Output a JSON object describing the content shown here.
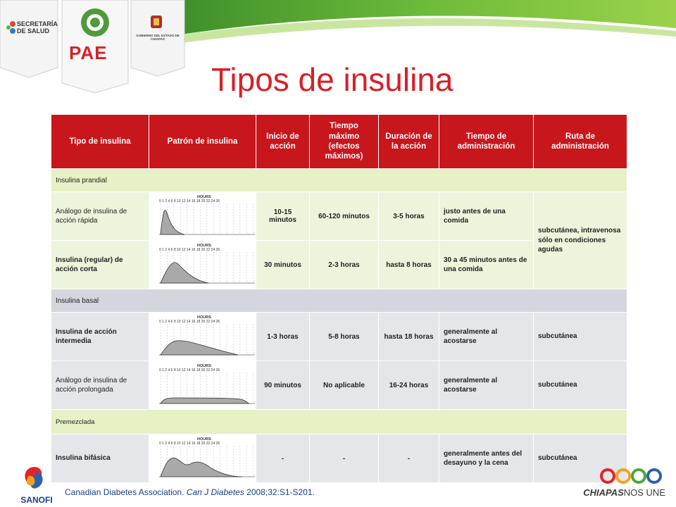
{
  "header": {
    "logo_secretaria_line1": "SECRETARÍA",
    "logo_secretaria_line2": "DE SALUD",
    "logo_pae": "PAE",
    "logo_gobierno": "GOBIERNO DEL ESTADO DE CHIAPAS"
  },
  "title": "Tipos de insulina",
  "table": {
    "headers": [
      "Tipo de insulina",
      "Patrón de insulina",
      "Inicio de acción",
      "Tiempo máximo (efectos máximos)",
      "Duración de la acción",
      "Tiempo de administración",
      "Ruta de administración"
    ],
    "graph_label": "HOURS",
    "graph_ticks": "0 1 2 4 6 8 10 12 14 16 18 20 22 24 26",
    "sections": [
      {
        "label": "Insulina prandial"
      },
      {
        "label": "Insulina basal"
      },
      {
        "label": "Premezclada"
      }
    ],
    "rows": [
      {
        "name": "Análogo de insulina de acción rápida",
        "inicio": "10-15 minutos",
        "maximo": "60-120 minutos",
        "duracion": "3-5 horas",
        "administracion": "justo antes de una comida",
        "ruta": "subcutánea, intravenosa sólo en condiciones agudas"
      },
      {
        "name": "Insulina (regular) de acción corta",
        "inicio": "30 minutos",
        "maximo": "2-3 horas",
        "duracion": "hasta 8 horas",
        "administracion": "30 a 45 minutos antes de una comida",
        "ruta": ""
      },
      {
        "name": "Insulina de acción intermedia",
        "inicio": "1-3 horas",
        "maximo": "5-8 horas",
        "duracion": "hasta 18 horas",
        "administracion": "generalmente al acostarse",
        "ruta": "subcutánea"
      },
      {
        "name": "Análogo de insulina de acción prolongada",
        "inicio": "90 minutos",
        "maximo": "No aplicable",
        "duracion": "16-24 horas",
        "administracion": "generalmente al acostarse",
        "ruta": "subcutánea"
      },
      {
        "name": "Insulina bifásica",
        "inicio": "-",
        "maximo": "-",
        "duracion": "-",
        "administracion": "generalmente antes del desayuno y la cena",
        "ruta": "subcutánea"
      }
    ]
  },
  "footer": {
    "citation_prefix": "Canadian Diabetes Association. ",
    "citation_journal": "Can J Diabetes",
    "citation_suffix": " 2008;32:S1-S201.",
    "sanofi": "SANOFI",
    "chiapas_bold": "CHIAPAS",
    "chiapas_rest": "NOS UNE"
  },
  "colors": {
    "header_red": "#c8161d",
    "title_red": "#d62027",
    "section_green": "#e6f1c5",
    "section_grey": "#d3d6dd"
  }
}
